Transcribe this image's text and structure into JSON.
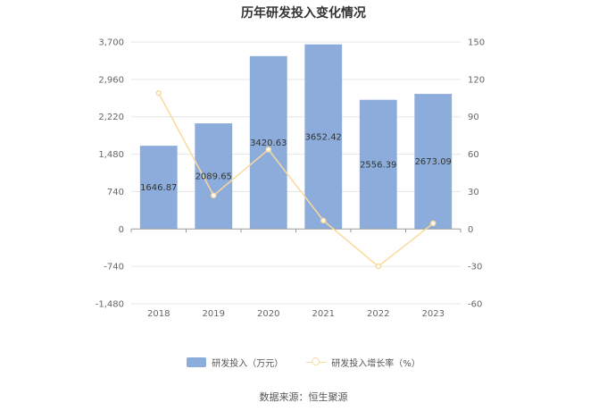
{
  "chart_data": {
    "type": "bar",
    "title": "历年研发投入变化情况",
    "categories": [
      "2018",
      "2019",
      "2020",
      "2021",
      "2022",
      "2023"
    ],
    "series": [
      {
        "name": "研发投入（万元）",
        "type": "bar",
        "axis": "left",
        "values": [
          1646.87,
          2089.65,
          3420.63,
          3652.42,
          2556.39,
          2673.09
        ],
        "labels": [
          "1646.87",
          "2089.65",
          "3420.63",
          "3652.42",
          "2556.39",
          "2673.09"
        ],
        "color": "#8cacdb"
      },
      {
        "name": "研发投入增长率（%）",
        "type": "line",
        "axis": "right",
        "values": [
          109,
          26.89,
          63.69,
          6.78,
          -30.01,
          4.56
        ],
        "color": "#fbd99b"
      }
    ],
    "y_left": {
      "ylim": [
        -1480,
        3700
      ],
      "ticks": [
        3700,
        2960,
        2220,
        1480,
        740,
        0,
        -740,
        -1480
      ],
      "tick_labels": [
        "3,700",
        "2,960",
        "2,220",
        "1,480",
        "740",
        "0",
        "-740",
        "-1,480"
      ]
    },
    "y_right": {
      "ylim": [
        -60,
        150
      ],
      "ticks": [
        150,
        120,
        90,
        60,
        30,
        0,
        -30,
        -60
      ],
      "tick_labels": [
        "150",
        "120",
        "90",
        "60",
        "30",
        "0",
        "-30",
        "-60"
      ]
    },
    "grid": true,
    "legend_position": "bottom",
    "source": "数据来源：恒生聚源",
    "colors": {
      "bar": "#8cacdb",
      "line": "#fbd99b",
      "grid": "#e6e6e6",
      "axis": "#999999"
    }
  }
}
